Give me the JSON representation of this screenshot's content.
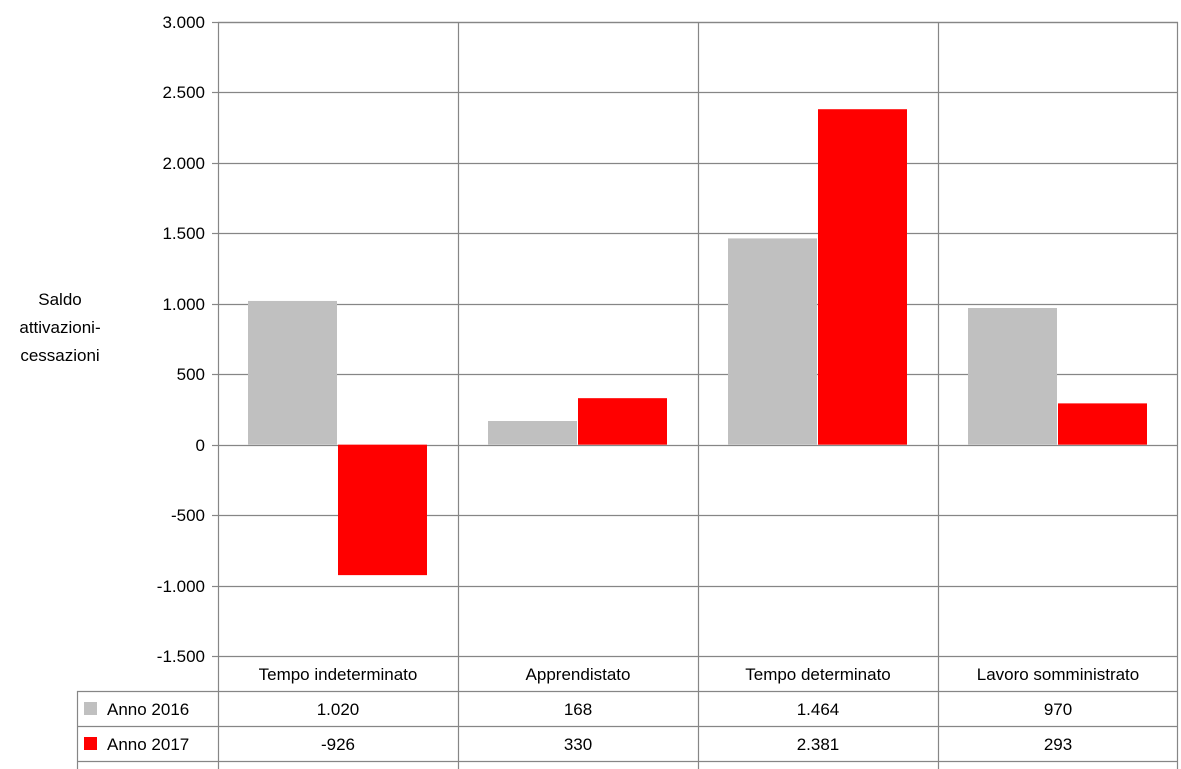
{
  "chart_data": {
    "type": "bar",
    "title": "",
    "ylabel": "Saldo attivazioni-cessazioni",
    "ylabel_lines": [
      "Saldo",
      "attivazioni-",
      "cessazioni"
    ],
    "xlabel": "",
    "categories": [
      "Tempo indeterminato",
      "Apprendistato",
      "Tempo determinato",
      "Lavoro somministrato"
    ],
    "series": [
      {
        "name": "Anno 2016",
        "color": "#c0c0c0",
        "values": [
          1020,
          168,
          1464,
          970
        ],
        "labels": [
          "1.020",
          "168",
          "1.464",
          "970"
        ]
      },
      {
        "name": "Anno 2017",
        "color": "#ff0000",
        "values": [
          -926,
          330,
          2381,
          293
        ],
        "labels": [
          "-926",
          "330",
          "2.381",
          "293"
        ]
      }
    ],
    "ylim": [
      -1500,
      3000
    ],
    "yticks": [
      3000,
      2500,
      2000,
      1500,
      1000,
      500,
      0,
      -500,
      -1000,
      -1500
    ],
    "ytick_labels": [
      "3.000",
      "2.500",
      "2.000",
      "1.500",
      "1.000",
      "500",
      "0",
      "-500",
      "-1.000",
      "-1.500"
    ],
    "grid": true,
    "legend": "data-table",
    "data_table": true
  }
}
